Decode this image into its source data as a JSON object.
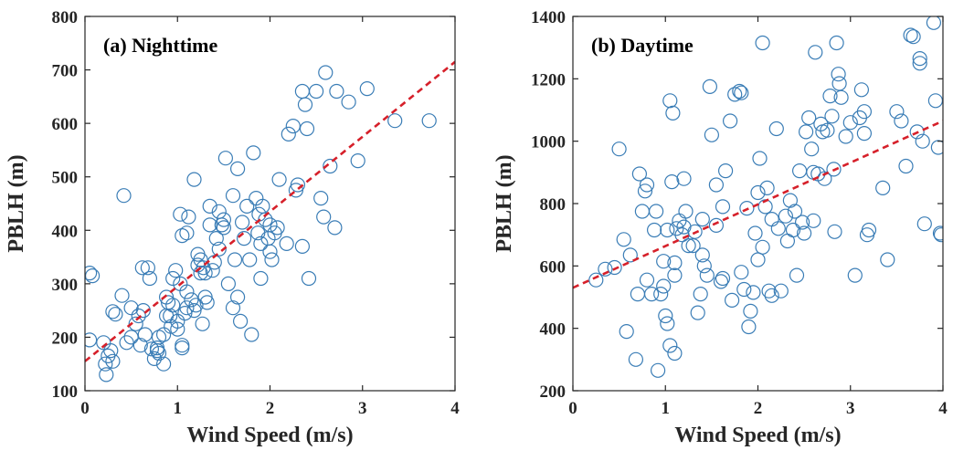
{
  "figure": {
    "panel_count": 2
  },
  "colors": {
    "marker": "#3a7db6",
    "fit_line": "#d6202a",
    "axes": "#262626"
  },
  "chart_data": [
    {
      "type": "scatter",
      "title": "(a) Nighttime",
      "xlabel": "Wind Speed (m/s)",
      "ylabel": "PBLH (m)",
      "xlim": [
        0,
        4
      ],
      "ylim": [
        100,
        800
      ],
      "xticks": [
        0,
        1,
        2,
        3,
        4
      ],
      "yticks": [
        100,
        200,
        300,
        400,
        500,
        600,
        700,
        800
      ],
      "grid": false,
      "legend": "none",
      "series": [
        {
          "marker": "open-circle",
          "points": [
            [
              0.05,
              320
            ],
            [
              0.08,
              315
            ],
            [
              0.05,
              195
            ],
            [
              0.2,
              190
            ],
            [
              0.22,
              150
            ],
            [
              0.23,
              130
            ],
            [
              0.25,
              165
            ],
            [
              0.28,
              175
            ],
            [
              0.3,
              155
            ],
            [
              0.3,
              248
            ],
            [
              0.33,
              243
            ],
            [
              0.4,
              278
            ],
            [
              0.42,
              465
            ],
            [
              0.45,
              190
            ],
            [
              0.5,
              255
            ],
            [
              0.55,
              225
            ],
            [
              0.58,
              240
            ],
            [
              0.6,
              185
            ],
            [
              0.63,
              250
            ],
            [
              0.65,
              205
            ],
            [
              0.68,
              330
            ],
            [
              0.7,
              310
            ],
            [
              0.72,
              178
            ],
            [
              0.75,
              160
            ],
            [
              0.78,
              175
            ],
            [
              0.8,
              170
            ],
            [
              0.8,
              200
            ],
            [
              0.85,
              150
            ],
            [
              0.85,
              205
            ],
            [
              0.88,
              275
            ],
            [
              0.9,
              265
            ],
            [
              0.92,
              240
            ],
            [
              0.93,
              220
            ],
            [
              0.95,
              310
            ],
            [
              0.98,
              325
            ],
            [
              1.0,
              230
            ],
            [
              1.0,
              215
            ],
            [
              1.03,
              300
            ],
            [
              1.05,
              185
            ],
            [
              1.05,
              180
            ],
            [
              1.1,
              255
            ],
            [
              1.1,
              285
            ],
            [
              1.03,
              430
            ],
            [
              1.05,
              390
            ],
            [
              1.1,
              395
            ],
            [
              1.12,
              425
            ],
            [
              1.18,
              495
            ],
            [
              1.2,
              260
            ],
            [
              1.22,
              355
            ],
            [
              1.22,
              335
            ],
            [
              1.25,
              345
            ],
            [
              1.25,
              320
            ],
            [
              1.28,
              330
            ],
            [
              1.3,
              320
            ],
            [
              1.3,
              275
            ],
            [
              1.32,
              265
            ],
            [
              1.35,
              445
            ],
            [
              1.35,
              410
            ],
            [
              1.38,
              325
            ],
            [
              1.4,
              340
            ],
            [
              1.42,
              385
            ],
            [
              1.45,
              365
            ],
            [
              1.48,
              410
            ],
            [
              1.5,
              405
            ],
            [
              1.5,
              420
            ],
            [
              1.52,
              535
            ],
            [
              1.55,
              300
            ],
            [
              1.6,
              255
            ],
            [
              1.62,
              345
            ],
            [
              1.65,
              515
            ],
            [
              1.65,
              275
            ],
            [
              1.68,
              230
            ],
            [
              1.7,
              415
            ],
            [
              1.72,
              385
            ],
            [
              1.75,
              445
            ],
            [
              1.78,
              345
            ],
            [
              1.8,
              205
            ],
            [
              1.82,
              545
            ],
            [
              1.85,
              460
            ],
            [
              1.87,
              395
            ],
            [
              1.88,
              430
            ],
            [
              1.9,
              375
            ],
            [
              1.92,
              445
            ],
            [
              1.95,
              420
            ],
            [
              1.98,
              385
            ],
            [
              2.0,
              360
            ],
            [
              2.0,
              410
            ],
            [
              2.02,
              345
            ],
            [
              2.05,
              395
            ],
            [
              2.08,
              405
            ],
            [
              2.1,
              495
            ],
            [
              2.18,
              375
            ],
            [
              2.2,
              580
            ],
            [
              2.25,
              595
            ],
            [
              2.3,
              485
            ],
            [
              2.35,
              370
            ],
            [
              2.35,
              660
            ],
            [
              2.38,
              635
            ],
            [
              2.4,
              590
            ],
            [
              2.42,
              310
            ],
            [
              2.5,
              660
            ],
            [
              2.55,
              460
            ],
            [
              2.58,
              425
            ],
            [
              2.6,
              695
            ],
            [
              2.65,
              520
            ],
            [
              2.7,
              405
            ],
            [
              2.72,
              660
            ],
            [
              2.85,
              640
            ],
            [
              2.95,
              530
            ],
            [
              3.05,
              665
            ],
            [
              3.35,
              605
            ],
            [
              3.72,
              605
            ],
            [
              0.5,
              200
            ],
            [
              0.62,
              330
            ],
            [
              0.95,
              260
            ],
            [
              1.15,
              270
            ],
            [
              1.18,
              250
            ],
            [
              1.27,
              225
            ],
            [
              1.45,
              435
            ],
            [
              1.6,
              465
            ],
            [
              1.9,
              310
            ],
            [
              2.28,
              475
            ],
            [
              0.78,
              180
            ],
            [
              0.88,
              240
            ],
            [
              1.08,
              245
            ]
          ]
        }
      ],
      "fit": {
        "style": "dashed",
        "x": [
          0,
          4
        ],
        "y": [
          155,
          715
        ]
      }
    },
    {
      "type": "scatter",
      "title": "(b) Daytime",
      "xlabel": "Wind Speed (m/s)",
      "ylabel": "PBLH (m)",
      "xlim": [
        0,
        4
      ],
      "ylim": [
        200,
        1400
      ],
      "xticks": [
        0,
        1,
        2,
        3,
        4
      ],
      "yticks": [
        200,
        400,
        600,
        800,
        1000,
        1200,
        1400
      ],
      "grid": false,
      "legend": "none",
      "series": [
        {
          "marker": "open-circle",
          "points": [
            [
              0.25,
              555
            ],
            [
              0.35,
              590
            ],
            [
              0.45,
              595
            ],
            [
              0.5,
              975
            ],
            [
              0.55,
              685
            ],
            [
              0.58,
              390
            ],
            [
              0.68,
              300
            ],
            [
              0.7,
              510
            ],
            [
              0.72,
              895
            ],
            [
              0.75,
              775
            ],
            [
              0.78,
              840
            ],
            [
              0.8,
              860
            ],
            [
              0.8,
              555
            ],
            [
              0.85,
              510
            ],
            [
              0.88,
              715
            ],
            [
              0.9,
              775
            ],
            [
              0.92,
              265
            ],
            [
              0.95,
              510
            ],
            [
              0.98,
              615
            ],
            [
              0.98,
              535
            ],
            [
              1.0,
              440
            ],
            [
              1.02,
              415
            ],
            [
              1.02,
              715
            ],
            [
              1.05,
              1130
            ],
            [
              1.05,
              345
            ],
            [
              1.07,
              870
            ],
            [
              1.08,
              1090
            ],
            [
              1.1,
              320
            ],
            [
              1.1,
              570
            ],
            [
              1.1,
              610
            ],
            [
              1.12,
              720
            ],
            [
              1.15,
              745
            ],
            [
              1.18,
              700
            ],
            [
              1.2,
              880
            ],
            [
              1.2,
              725
            ],
            [
              1.22,
              775
            ],
            [
              1.25,
              665
            ],
            [
              1.3,
              665
            ],
            [
              1.32,
              710
            ],
            [
              1.35,
              450
            ],
            [
              1.38,
              510
            ],
            [
              1.4,
              635
            ],
            [
              1.42,
              600
            ],
            [
              1.45,
              570
            ],
            [
              1.48,
              1175
            ],
            [
              1.5,
              1020
            ],
            [
              1.55,
              860
            ],
            [
              1.55,
              730
            ],
            [
              1.6,
              550
            ],
            [
              1.62,
              790
            ],
            [
              1.62,
              560
            ],
            [
              1.65,
              905
            ],
            [
              1.7,
              1065
            ],
            [
              1.72,
              490
            ],
            [
              1.75,
              1150
            ],
            [
              1.8,
              1160
            ],
            [
              1.82,
              1155
            ],
            [
              1.82,
              580
            ],
            [
              1.85,
              525
            ],
            [
              1.88,
              785
            ],
            [
              1.9,
              405
            ],
            [
              1.92,
              455
            ],
            [
              1.95,
              515
            ],
            [
              1.97,
              705
            ],
            [
              2.0,
              835
            ],
            [
              2.02,
              945
            ],
            [
              2.05,
              1315
            ],
            [
              2.08,
              790
            ],
            [
              2.1,
              850
            ],
            [
              2.12,
              520
            ],
            [
              2.15,
              750
            ],
            [
              2.15,
              505
            ],
            [
              2.2,
              1040
            ],
            [
              2.22,
              720
            ],
            [
              2.3,
              760
            ],
            [
              2.32,
              680
            ],
            [
              2.35,
              810
            ],
            [
              2.38,
              715
            ],
            [
              2.4,
              775
            ],
            [
              2.42,
              570
            ],
            [
              2.45,
              905
            ],
            [
              2.48,
              740
            ],
            [
              2.5,
              705
            ],
            [
              2.52,
              1030
            ],
            [
              2.55,
              1075
            ],
            [
              2.58,
              975
            ],
            [
              2.6,
              900
            ],
            [
              2.62,
              1285
            ],
            [
              2.65,
              895
            ],
            [
              2.68,
              1055
            ],
            [
              2.7,
              1030
            ],
            [
              2.72,
              880
            ],
            [
              2.75,
              1035
            ],
            [
              2.78,
              1145
            ],
            [
              2.8,
              1080
            ],
            [
              2.82,
              910
            ],
            [
              2.85,
              1315
            ],
            [
              2.87,
              1215
            ],
            [
              2.88,
              1185
            ],
            [
              2.9,
              1140
            ],
            [
              2.95,
              1015
            ],
            [
              3.0,
              1060
            ],
            [
              3.05,
              570
            ],
            [
              3.1,
              1075
            ],
            [
              3.12,
              1165
            ],
            [
              3.15,
              1025
            ],
            [
              3.18,
              700
            ],
            [
              3.2,
              715
            ],
            [
              3.35,
              850
            ],
            [
              3.4,
              620
            ],
            [
              3.5,
              1095
            ],
            [
              3.55,
              1065
            ],
            [
              3.6,
              920
            ],
            [
              3.65,
              1340
            ],
            [
              3.68,
              1335
            ],
            [
              3.72,
              1030
            ],
            [
              3.75,
              1265
            ],
            [
              3.75,
              1250
            ],
            [
              3.78,
              1000
            ],
            [
              3.8,
              735
            ],
            [
              3.9,
              1380
            ],
            [
              3.92,
              1130
            ],
            [
              3.95,
              980
            ],
            [
              3.97,
              705
            ],
            [
              3.98,
              700
            ],
            [
              0.62,
              635
            ],
            [
              1.4,
              750
            ],
            [
              2.0,
              620
            ],
            [
              2.05,
              660
            ],
            [
              2.25,
              520
            ],
            [
              2.6,
              745
            ],
            [
              2.83,
              710
            ],
            [
              3.15,
              1095
            ]
          ]
        }
      ],
      "fit": {
        "style": "dashed",
        "x": [
          0,
          4
        ],
        "y": [
          530,
          1065
        ]
      }
    }
  ]
}
